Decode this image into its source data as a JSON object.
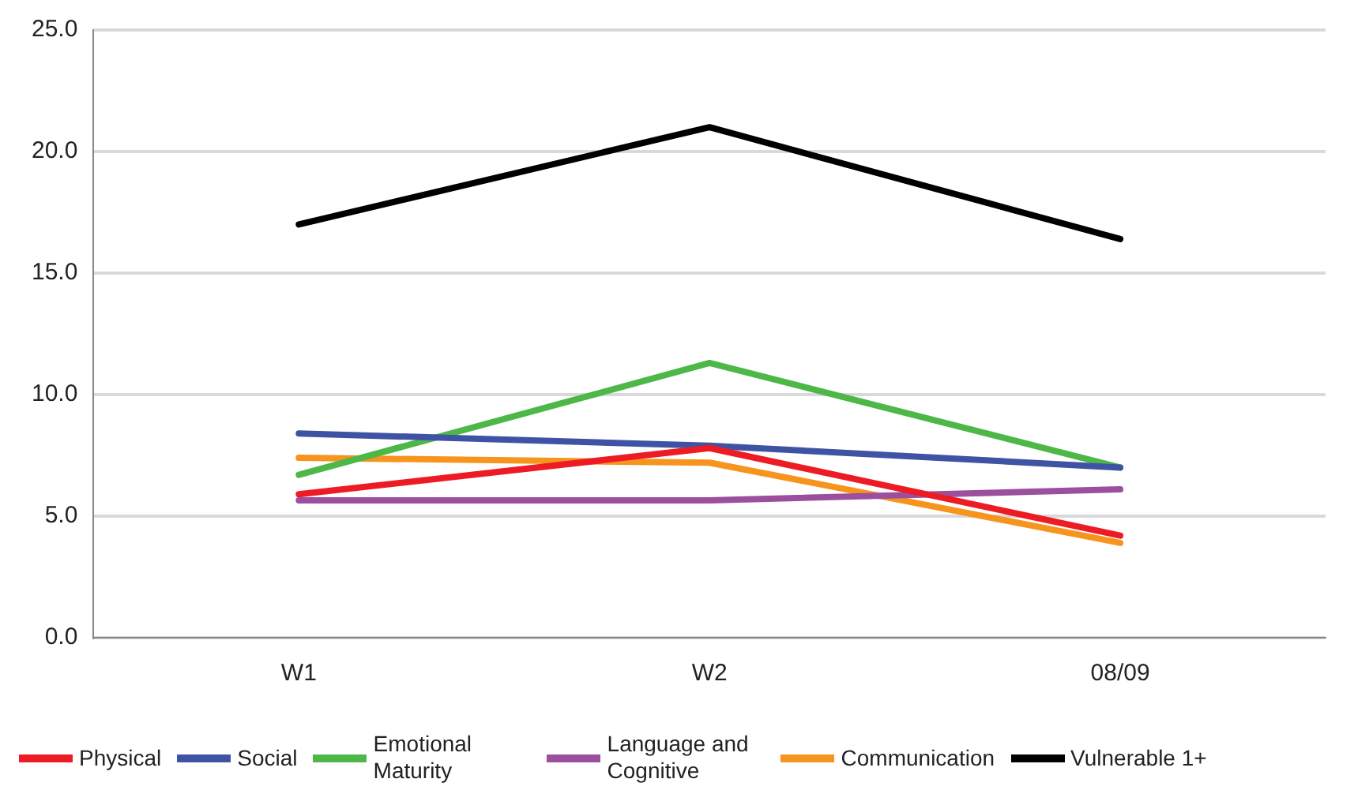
{
  "chart_data": {
    "type": "line",
    "categories": [
      "W1",
      "W2",
      "08/09"
    ],
    "series": [
      {
        "name": "Physical",
        "color": "#ed1c24",
        "values": [
          5.9,
          7.8,
          4.2
        ]
      },
      {
        "name": "Social",
        "color": "#3f53a5",
        "values": [
          8.4,
          7.9,
          7.0
        ]
      },
      {
        "name": "Emotional Maturity",
        "color": "#4db848",
        "values": [
          6.7,
          11.3,
          7.0
        ]
      },
      {
        "name": "Language and Cognitive",
        "color": "#9b4f9e",
        "values": [
          5.65,
          5.65,
          6.1
        ]
      },
      {
        "name": "Communication",
        "color": "#f7941d",
        "values": [
          7.4,
          7.2,
          3.9
        ]
      },
      {
        "name": "Vulnerable 1+",
        "color": "#000000",
        "values": [
          17.0,
          21.0,
          16.4
        ]
      }
    ],
    "ylim": [
      0,
      25
    ],
    "yticks": [
      {
        "value": 0,
        "label": "0.0"
      },
      {
        "value": 5,
        "label": "5.0"
      },
      {
        "value": 10,
        "label": "10.0"
      },
      {
        "value": 15,
        "label": "15.0"
      },
      {
        "value": 20,
        "label": "20.0"
      },
      {
        "value": 25,
        "label": "25.0"
      }
    ],
    "grid": "y",
    "legend": "bottom",
    "marker": "none",
    "line_style": "solid"
  }
}
